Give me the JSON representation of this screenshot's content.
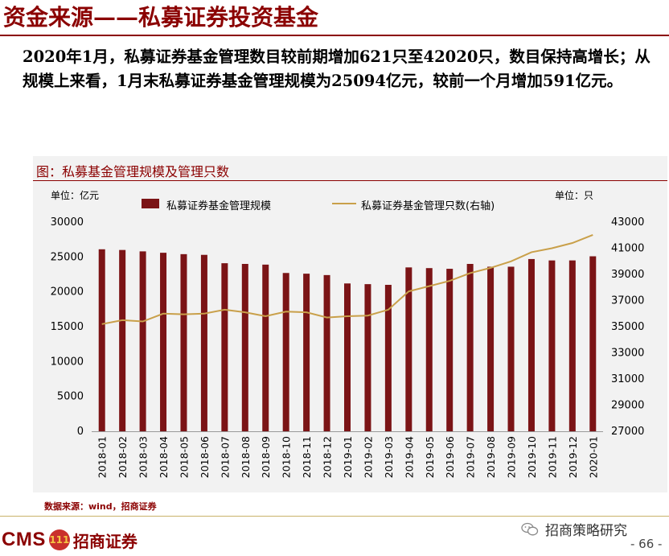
{
  "header": {
    "title": "资金来源——私募证券投资基金",
    "summary": "2020年1月，私募证券基金管理数目较前期增加621只至42020只，数目保持高增长；从规模上来看，1月末私募证券基金管理规模为25094亿元，较前一个月增加591亿元。"
  },
  "figure": {
    "caption": "图：私募基金管理规模及管理只数",
    "unit_left": "单位：亿元",
    "unit_right": "单位：只",
    "source": "数据来源：wind，招商证券"
  },
  "colors": {
    "brand": "#8b0000",
    "bar": "#7b1416",
    "line": "#c9a04a",
    "panel": "#f2f2f2"
  },
  "chart_data": {
    "type": "bar",
    "categories": [
      "2018-01",
      "2018-02",
      "2018-03",
      "2018-04",
      "2018-05",
      "2018-06",
      "2018-07",
      "2018-08",
      "2018-09",
      "2018-10",
      "2018-11",
      "2018-12",
      "2019-01",
      "2019-02",
      "2019-03",
      "2019-04",
      "2019-05",
      "2019-06",
      "2019-07",
      "2019-08",
      "2019-09",
      "2019-10",
      "2019-11",
      "2019-12",
      "2020-01"
    ],
    "series": [
      {
        "name": "私募证券基金管理规模",
        "type": "bar",
        "axis": "left",
        "values": [
          26100,
          26000,
          25800,
          25600,
          25400,
          25300,
          24100,
          24000,
          23900,
          22700,
          22600,
          22400,
          21200,
          21100,
          21000,
          23500,
          23400,
          23300,
          24000,
          23600,
          23600,
          24700,
          24500,
          24503,
          25094
        ]
      },
      {
        "name": "私募证券基金管理只数(右轴)",
        "type": "line",
        "axis": "right",
        "values": [
          35200,
          35500,
          35400,
          36000,
          35950,
          36000,
          36300,
          36100,
          35800,
          36150,
          36100,
          35700,
          35800,
          35850,
          36300,
          37700,
          38100,
          38500,
          39100,
          39500,
          40000,
          40700,
          41000,
          41399,
          42020
        ]
      }
    ],
    "y_left": {
      "min": 0,
      "max": 30000,
      "ticks": [
        0,
        5000,
        10000,
        15000,
        20000,
        25000,
        30000
      ]
    },
    "y_right": {
      "min": 27000,
      "max": 43000,
      "ticks": [
        27000,
        29000,
        31000,
        33000,
        35000,
        37000,
        39000,
        41000,
        43000
      ]
    },
    "grid": false,
    "legend_position": "top"
  },
  "footer": {
    "logo_text": "CMS",
    "logo_seal": "111",
    "logo_cn": "招商证券",
    "wechat_label": "招商策略研究",
    "page_number": "- 66 -"
  }
}
